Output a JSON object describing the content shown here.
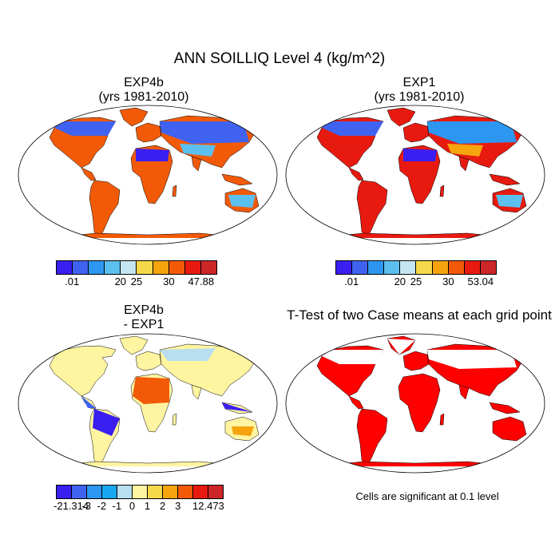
{
  "title": "ANN SOILLIQ Level 4 (kg/m^2)",
  "panels": [
    {
      "title_line1": "EXP4b",
      "title_line2": "(yrs 1981-2010)"
    },
    {
      "title_line1": "EXP1",
      "title_line2": "(yrs 1981-2010)"
    },
    {
      "title_line1": "EXP4b",
      "title_line2": "- EXP1"
    },
    {
      "title_line1": "T-Test of two Case means at each grid point",
      "title_line2": ""
    }
  ],
  "note": "Cells are significant at 0.1 level",
  "colorbars": [
    {
      "colors": [
        "#3a1ef2",
        "#3f63f0",
        "#2c96f0",
        "#5cc0ee",
        "#c4e6f2",
        "#f6d94a",
        "#f6a40e",
        "#f25a08",
        "#e81a10",
        "#cc2628"
      ],
      "ticks": [
        {
          "label": ".01",
          "boundary": 1
        },
        {
          "label": "20",
          "boundary": 4
        },
        {
          "label": "25",
          "boundary": 5
        },
        {
          "label": "30",
          "boundary": 7
        },
        {
          "label": "47.88",
          "boundary": 9
        }
      ]
    },
    {
      "colors": [
        "#3a1ef2",
        "#3f63f0",
        "#2c96f0",
        "#5cc0ee",
        "#c4e6f2",
        "#f6d94a",
        "#f6a40e",
        "#f25a08",
        "#e81a10",
        "#cc2628"
      ],
      "ticks": [
        {
          "label": ".01",
          "boundary": 1
        },
        {
          "label": "20",
          "boundary": 4
        },
        {
          "label": "25",
          "boundary": 5
        },
        {
          "label": "30",
          "boundary": 7
        },
        {
          "label": "53.04",
          "boundary": 9
        }
      ]
    },
    {
      "colors": [
        "#3a1ef2",
        "#3f63f0",
        "#2c96f0",
        "#18a6f0",
        "#b8def0",
        "#fff4a0",
        "#f6d94a",
        "#f6a40e",
        "#f25a08",
        "#e81a10",
        "#cc2628"
      ],
      "ticks": [
        {
          "label": "-21.314",
          "boundary": 1
        },
        {
          "label": "-3",
          "boundary": 2
        },
        {
          "label": "-2",
          "boundary": 3
        },
        {
          "label": "-1",
          "boundary": 4
        },
        {
          "label": "0",
          "boundary": 5
        },
        {
          "label": "1",
          "boundary": 6
        },
        {
          "label": "2",
          "boundary": 7
        },
        {
          "label": "3",
          "boundary": 8
        },
        {
          "label": "12.473",
          "boundary": 10
        }
      ]
    }
  ]
}
